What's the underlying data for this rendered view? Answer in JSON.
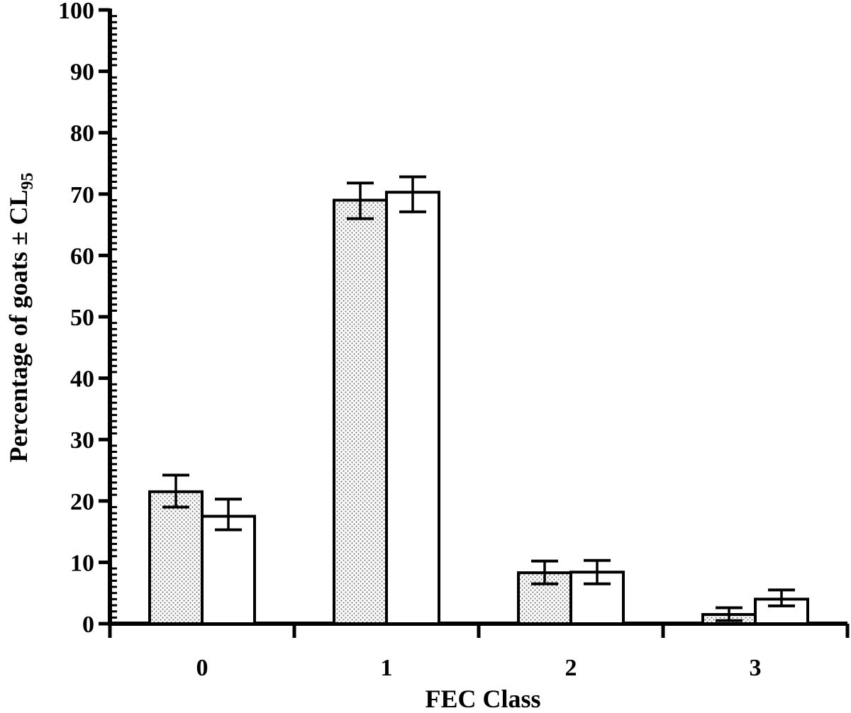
{
  "chart_data": {
    "type": "bar",
    "xlabel": "FEC Class",
    "ylabel": {
      "main": "Percentage of goats ± CL",
      "subscript": "95"
    },
    "categories": [
      "0",
      "1",
      "2",
      "3"
    ],
    "ylim": [
      0,
      100
    ],
    "yticks": [
      "0",
      "10",
      "20",
      "30",
      "40",
      "50",
      "60",
      "70",
      "80",
      "90",
      "100"
    ],
    "grid": false,
    "series": [
      {
        "fill": "dotted",
        "values": [
          21.5,
          69,
          8.3,
          1.5
        ],
        "err_low": [
          19.0,
          66.0,
          6.5,
          0.5
        ],
        "err_high": [
          24.2,
          71.8,
          10.2,
          2.6
        ]
      },
      {
        "fill": "white",
        "values": [
          17.5,
          70.3,
          8.4,
          4.0
        ],
        "err_low": [
          15.3,
          67.1,
          6.5,
          2.9
        ],
        "err_high": [
          20.3,
          72.8,
          10.3,
          5.5
        ]
      }
    ],
    "colors": {
      "axis": "#000000",
      "bar_edge": "#000000",
      "dot": "#7a7a7a",
      "bar_fill": "#ffffff"
    }
  }
}
